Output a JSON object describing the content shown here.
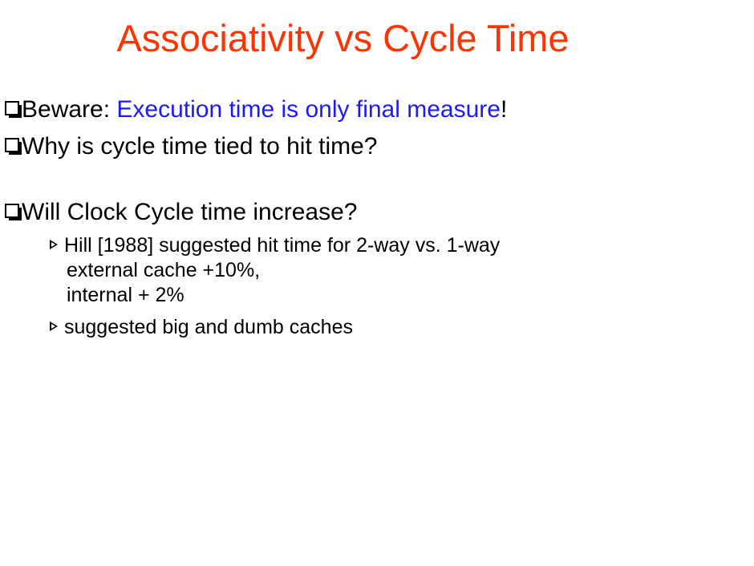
{
  "slide": {
    "title": "Associativity vs Cycle Time",
    "colors": {
      "title": "#ff3300",
      "highlight": "#1a1aff",
      "text": "#000000"
    },
    "bullets": [
      {
        "prefix": "Beware: ",
        "highlight": "Execution time is only final measure",
        "suffix": "!"
      },
      {
        "text": "Why is cycle time tied to hit time?"
      },
      {
        "text": "Will Clock Cycle time increase?",
        "subbullets": [
          {
            "lines": [
              "Hill [1988] suggested hit time for 2-way vs. 1-way",
              "external cache +10%,",
              "internal + 2%"
            ]
          },
          {
            "lines": [
              "suggested big and dumb caches"
            ]
          }
        ]
      }
    ],
    "icons": {
      "bullet": "hollow-square-icon",
      "subbullet": "arrowhead-icon"
    }
  }
}
